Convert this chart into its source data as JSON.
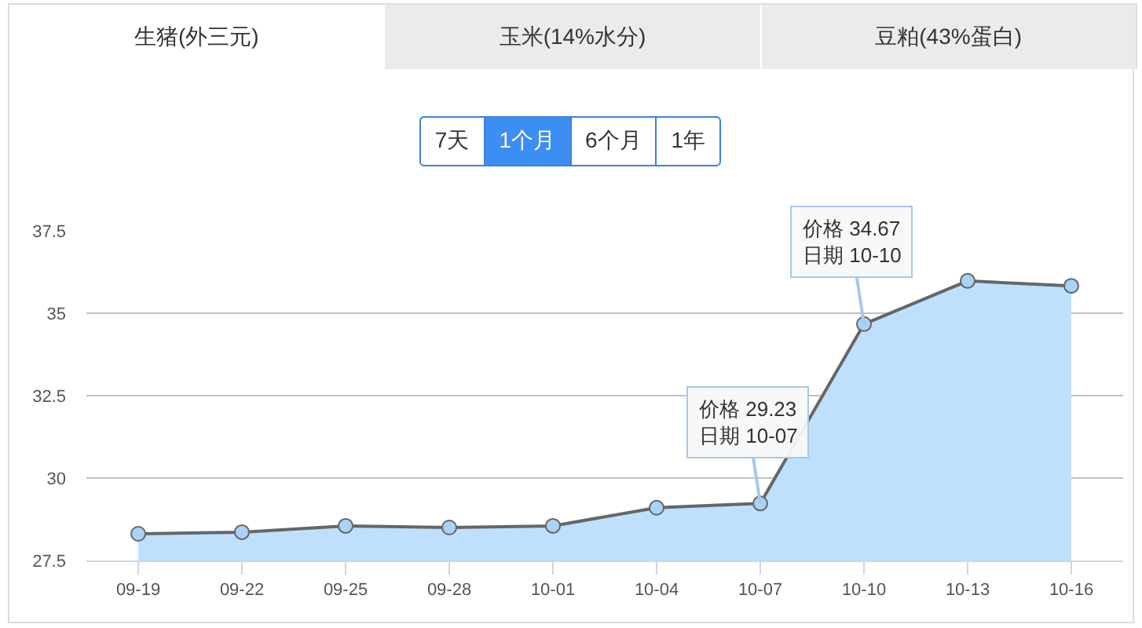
{
  "chart_data": {
    "type": "area",
    "categories": [
      "09-19",
      "09-22",
      "09-25",
      "09-28",
      "10-01",
      "10-04",
      "10-07",
      "10-10",
      "10-13",
      "10-16"
    ],
    "series": [
      {
        "color": "#bfe0fc",
        "values": [
          28.31,
          28.36,
          28.55,
          28.5,
          28.55,
          29.1,
          29.23,
          34.67,
          35.98,
          35.83
        ]
      }
    ],
    "ylim": [
      27.5,
      37.5
    ],
    "yticks": [
      27.5,
      30,
      32.5,
      35,
      37.5
    ],
    "grid": "y",
    "marker": "circle",
    "legend": false,
    "annotations": [
      "生猪(外三元)",
      "玉米(14%水分)",
      "豆粕(43%蛋白)",
      "7天",
      "1个月",
      "6个月",
      "1年",
      {
        "text": "价格 29.23\n日期 10-07",
        "x": "10-07",
        "y": 29.23
      },
      {
        "text": "价格 34.67\n日期 10-10",
        "x": "10-10",
        "y": 34.67
      }
    ]
  }
}
